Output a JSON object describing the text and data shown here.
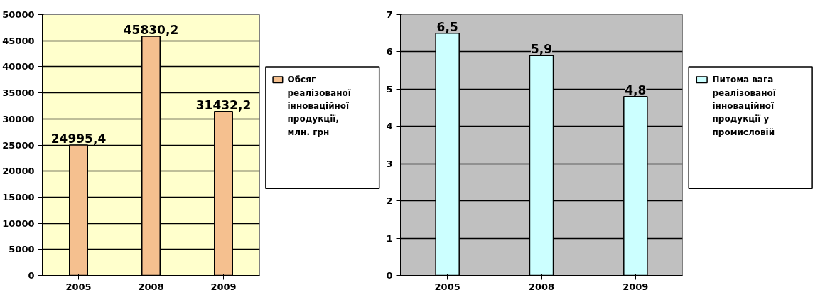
{
  "chart_data": [
    {
      "type": "bar",
      "categories": [
        "2005",
        "2008",
        "2009"
      ],
      "ylim": [
        0,
        50000
      ],
      "yticks": [
        0,
        5000,
        10000,
        15000,
        20000,
        25000,
        30000,
        35000,
        40000,
        45000,
        50000
      ],
      "grid": "y",
      "legend": "right",
      "series": [
        {
          "name": "Обсяг реалізованої інноваційної продукції, млн. грн",
          "color": "#f5c08f",
          "values": [
            24995.4,
            45830.2,
            31432.2
          ],
          "value_labels": [
            "24995,4",
            "45830,2",
            "31432,2"
          ]
        }
      ]
    },
    {
      "type": "bar",
      "categories": [
        "2005",
        "2008",
        "2009"
      ],
      "ylim": [
        0,
        7
      ],
      "yticks": [
        0,
        1,
        2,
        3,
        4,
        5,
        6,
        7
      ],
      "grid": "y",
      "legend": "right",
      "series": [
        {
          "name": "Питома вага реалізованої інноваційної продукції у промисловій",
          "color": "#ccffff",
          "values": [
            6.5,
            5.9,
            4.8
          ],
          "value_labels": [
            "6,5",
            "5,9",
            "4,8"
          ]
        }
      ]
    }
  ]
}
